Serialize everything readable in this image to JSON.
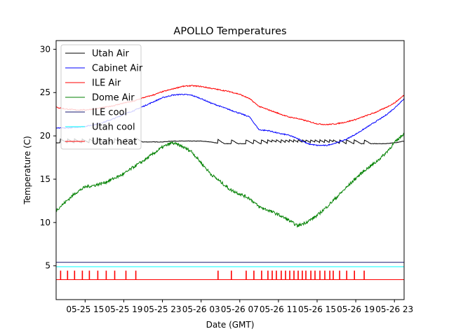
{
  "chart_data": {
    "type": "line",
    "title": "APOLLO Temperatures",
    "xlabel": "Date (GMT)",
    "ylabel": "Temperature (C)",
    "x_unit": "hours since 05-25 00:00 GMT",
    "xlim": [
      12.0,
      48.0
    ],
    "ylim": [
      1.1,
      31.0
    ],
    "grid": false,
    "legend_position": "top-left",
    "y_ticks": [
      5,
      10,
      15,
      20,
      25,
      30
    ],
    "y_tick_labels": [
      "5",
      "10",
      "15",
      "20",
      "25",
      "30"
    ],
    "x_ticks": [
      15,
      19,
      23,
      27,
      31,
      35,
      39,
      43,
      47
    ],
    "x_tick_labels": [
      "05-25 15",
      "05-25 19",
      "05-25 23",
      "05-26 03",
      "05-26 07",
      "05-26 11",
      "05-26 15",
      "05-26 19",
      "05-26 23"
    ],
    "x": [
      12,
      13,
      14,
      15,
      16,
      17,
      18,
      19,
      20,
      21,
      22,
      23,
      24,
      25,
      26,
      27,
      28,
      29,
      30,
      31,
      32,
      33,
      34,
      35,
      36,
      37,
      38,
      39,
      40,
      41,
      42,
      43,
      44,
      45,
      46,
      47,
      48
    ],
    "series": [
      {
        "name": "Utah Air",
        "color": "#000000",
        "kind": "sawtooth",
        "values": [
          19.2,
          19.2,
          19.2,
          19.2,
          19.2,
          19.2,
          19.2,
          19.2,
          19.3,
          19.3,
          19.3,
          19.3,
          19.4,
          19.4,
          19.4,
          19.4,
          19.3,
          19.1,
          19.1,
          19.1,
          19.1,
          19.1,
          19.1,
          19.1,
          19.1,
          19.1,
          19.1,
          19.1,
          19.1,
          19.1,
          19.1,
          19.1,
          19.1,
          19.1,
          19.1,
          19.2,
          19.4
        ],
        "event_jump": 0.45
      },
      {
        "name": "Cabinet Air",
        "color": "#0000ff",
        "values": [
          20.9,
          20.9,
          21.0,
          21.1,
          21.3,
          21.6,
          22.0,
          22.5,
          22.9,
          23.4,
          23.9,
          24.4,
          24.7,
          24.8,
          24.7,
          24.3,
          23.8,
          23.4,
          23.0,
          22.6,
          22.2,
          20.7,
          20.6,
          20.3,
          20.1,
          19.7,
          19.1,
          18.9,
          18.9,
          19.2,
          19.6,
          20.2,
          20.9,
          21.6,
          22.3,
          23.2,
          24.3
        ]
      },
      {
        "name": "ILE Air",
        "color": "#ff0000",
        "values": [
          23.3,
          23.1,
          23.0,
          23.0,
          23.1,
          23.3,
          23.5,
          23.8,
          24.0,
          24.4,
          24.7,
          25.1,
          25.4,
          25.7,
          25.8,
          25.7,
          25.5,
          25.3,
          25.1,
          24.8,
          24.3,
          23.4,
          23.0,
          22.6,
          22.2,
          22.0,
          21.7,
          21.4,
          21.3,
          21.4,
          21.6,
          21.9,
          22.3,
          22.7,
          23.2,
          23.8,
          24.7
        ]
      },
      {
        "name": "Dome Air",
        "color": "#008000",
        "values": [
          11.4,
          12.4,
          13.4,
          14.1,
          14.3,
          14.6,
          15.1,
          15.6,
          16.4,
          17.1,
          17.9,
          18.7,
          19.2,
          18.8,
          18.2,
          16.9,
          15.6,
          14.7,
          13.8,
          13.3,
          12.8,
          11.8,
          11.4,
          10.9,
          10.3,
          9.6,
          10.1,
          10.8,
          11.8,
          12.9,
          14.0,
          15.1,
          16.1,
          16.9,
          17.9,
          19.2,
          20.3
        ]
      },
      {
        "name": "ILE cool",
        "color": "#191970",
        "kind": "level",
        "level": 5.4
      },
      {
        "name": "Utah cool",
        "color": "#00ffff",
        "kind": "level",
        "level": 4.9
      },
      {
        "name": "Utah heat",
        "color": "#ff0000",
        "kind": "events",
        "level": 3.4,
        "on_level": 4.4,
        "events": [
          12.44,
          13.16,
          13.89,
          14.69,
          15.42,
          16.29,
          17.16,
          18.04,
          19.2,
          20.22,
          28.73,
          30.11,
          31.64,
          32.44,
          33.24,
          33.89,
          34.33,
          34.76,
          35.27,
          35.71,
          36.15,
          36.58,
          37.02,
          37.45,
          37.82,
          38.33,
          38.76,
          39.27,
          39.78,
          40.29,
          40.65,
          41.31,
          42.04,
          42.84,
          43.85
        ]
      }
    ]
  }
}
